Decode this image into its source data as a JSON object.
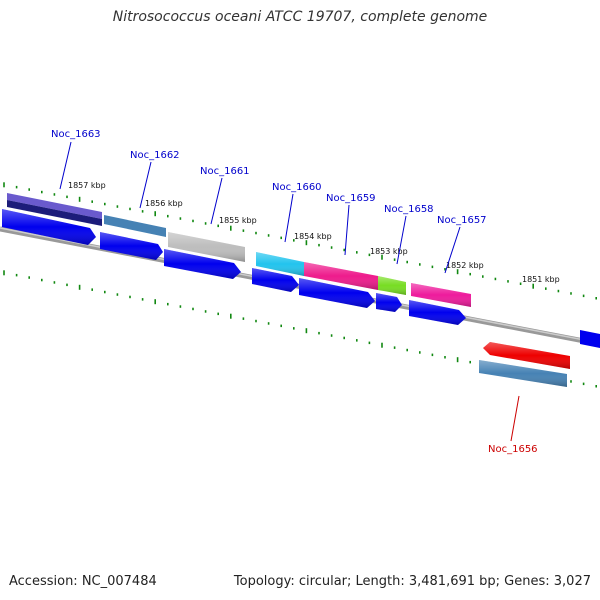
{
  "title": "Nitrosococcus oceani ATCC 19707, complete genome",
  "footer": {
    "accession": "Accession: NC_007484",
    "summary": "Topology: circular; Length: 3,481,691 bp; Genes: 3,027"
  },
  "kbp_labels": [
    "1857 kbp",
    "1856 kbp",
    "1855 kbp",
    "1854 kbp",
    "1853 kbp",
    "1852 kbp",
    "1851 kbp"
  ],
  "gene_labels": [
    {
      "name": "Noc_1663",
      "color": "#0000cc"
    },
    {
      "name": "Noc_1662",
      "color": "#0000cc"
    },
    {
      "name": "Noc_1661",
      "color": "#0000cc"
    },
    {
      "name": "Noc_1660",
      "color": "#0000cc"
    },
    {
      "name": "Noc_1659",
      "color": "#0000cc"
    },
    {
      "name": "Noc_1658",
      "color": "#0000cc"
    },
    {
      "name": "Noc_1657",
      "color": "#0000cc"
    },
    {
      "name": "Noc_1656",
      "color": "#cc0000"
    }
  ],
  "colors": {
    "backbone": "#888888",
    "tick": "#118811",
    "cds": "#0000ee",
    "reverse_gene": "#ee0000"
  }
}
